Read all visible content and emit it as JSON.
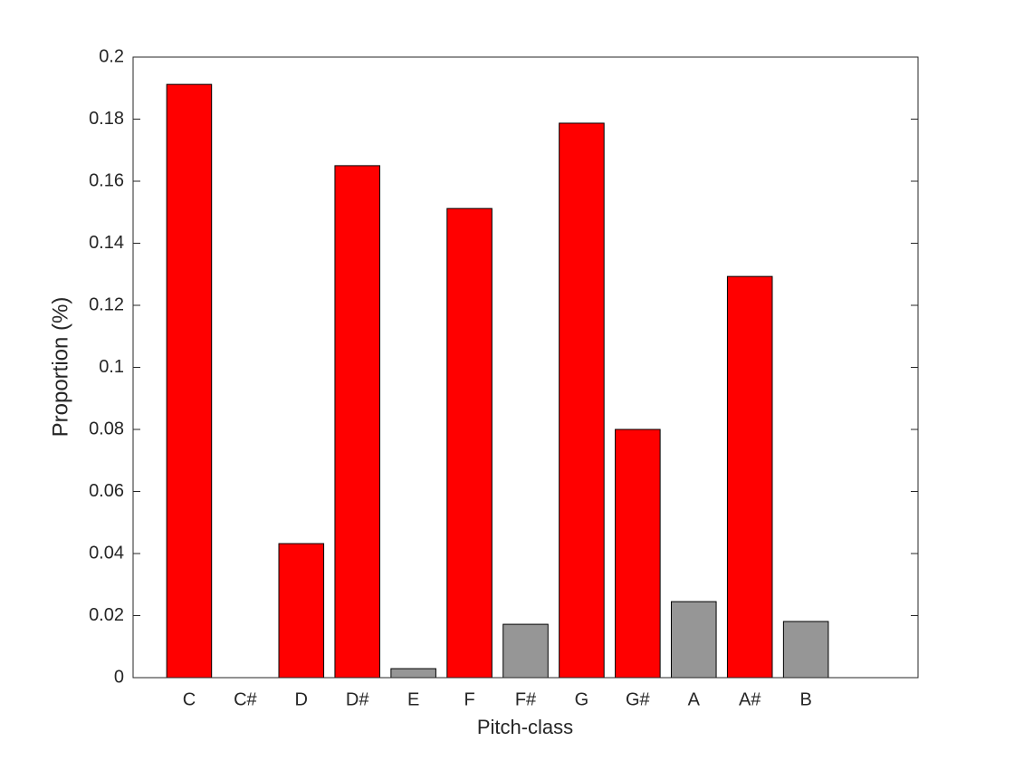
{
  "chart_data": {
    "type": "bar",
    "x_label": "Pitch-class",
    "y_label": "Proportion (%)",
    "categories": [
      "C",
      "C#",
      "D",
      "D#",
      "E",
      "F",
      "F#",
      "G",
      "G#",
      "A",
      "A#",
      "B"
    ],
    "values": [
      0.1912,
      0,
      0.0432,
      0.165,
      0.0029,
      0.1512,
      0.0172,
      0.1787,
      0.08,
      0.0245,
      0.1293,
      0.0181
    ],
    "colors": [
      "#ff0000",
      "#969696",
      "#ff0000",
      "#ff0000",
      "#969696",
      "#ff0000",
      "#969696",
      "#ff0000",
      "#ff0000",
      "#969696",
      "#ff0000",
      "#969696"
    ],
    "ylim": [
      0,
      0.2
    ],
    "yticks": [
      0,
      0.02,
      0.04,
      0.06,
      0.08,
      0.1,
      0.12,
      0.14,
      0.16,
      0.18,
      0.2
    ],
    "grid": false
  }
}
